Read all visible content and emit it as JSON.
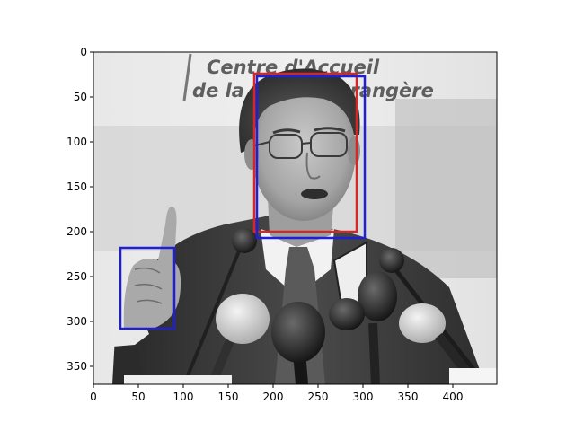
{
  "image": {
    "width": 449,
    "height": 370,
    "tonality": "grayscale",
    "sign_text": [
      "Centre d'Accueil",
      "de la Presse Etrangère"
    ]
  },
  "axes": {
    "xlim": [
      0,
      449
    ],
    "ylim": [
      370,
      0
    ],
    "x_ticks": [
      0,
      50,
      100,
      150,
      200,
      250,
      300,
      350,
      400
    ],
    "y_ticks": [
      0,
      50,
      100,
      150,
      200,
      250,
      300,
      350
    ],
    "grid": false
  },
  "boxes": [
    {
      "label_color": "#d62728",
      "role": "face-box-red",
      "x0": 179,
      "y0": 24,
      "x1": 293,
      "y1": 200
    },
    {
      "label_color": "#1f1fd6",
      "role": "face-box-blue",
      "x0": 182,
      "y0": 27,
      "x1": 302,
      "y1": 207
    },
    {
      "label_color": "#1f1fd6",
      "role": "hand-box-blue",
      "x0": 30,
      "y0": 218,
      "x1": 90,
      "y1": 308
    }
  ]
}
